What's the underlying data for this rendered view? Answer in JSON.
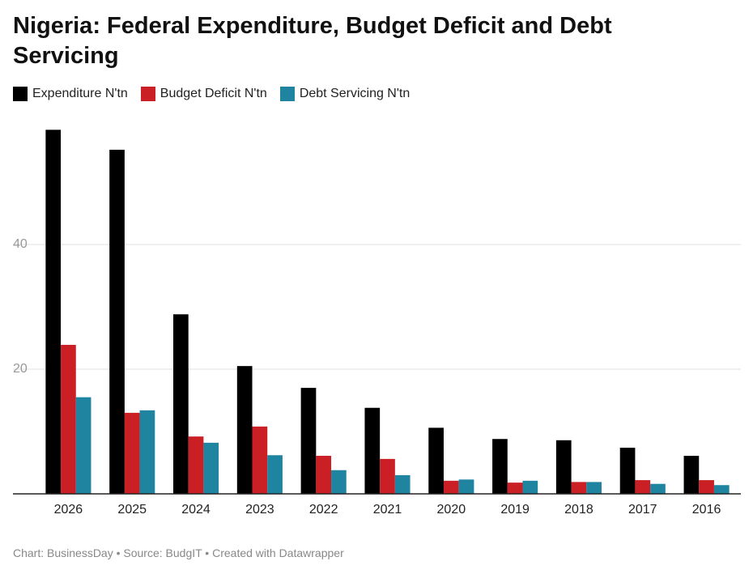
{
  "chart_data": {
    "type": "bar",
    "title": "Nigeria: Federal Expenditure, Budget Deficit and Debt Servicing",
    "source": "Chart: BusinessDay • Source: BudgIT • Created with Datawrapper",
    "categories": [
      "2026",
      "2025",
      "2024",
      "2023",
      "2022",
      "2021",
      "2020",
      "2019",
      "2018",
      "2017",
      "2016"
    ],
    "series": [
      {
        "name": "Expenditure N'tn",
        "color": "#000000",
        "values": [
          58.4,
          55.2,
          28.8,
          20.5,
          17.0,
          13.8,
          10.6,
          8.8,
          8.6,
          7.4,
          6.1
        ]
      },
      {
        "name": "Budget Deficit N'tn",
        "color": "#c91f25",
        "values": [
          23.9,
          13.0,
          9.2,
          10.8,
          6.1,
          5.6,
          2.1,
          1.8,
          1.9,
          2.2,
          2.2
        ]
      },
      {
        "name": "Debt Servicing N'tn",
        "color": "#1f84a0",
        "values": [
          15.5,
          13.4,
          8.2,
          6.2,
          3.8,
          3.0,
          2.3,
          2.1,
          1.9,
          1.6,
          1.4
        ]
      }
    ],
    "ylim": [
      0,
      60
    ],
    "yticks": [
      20,
      40
    ],
    "grid": true
  }
}
